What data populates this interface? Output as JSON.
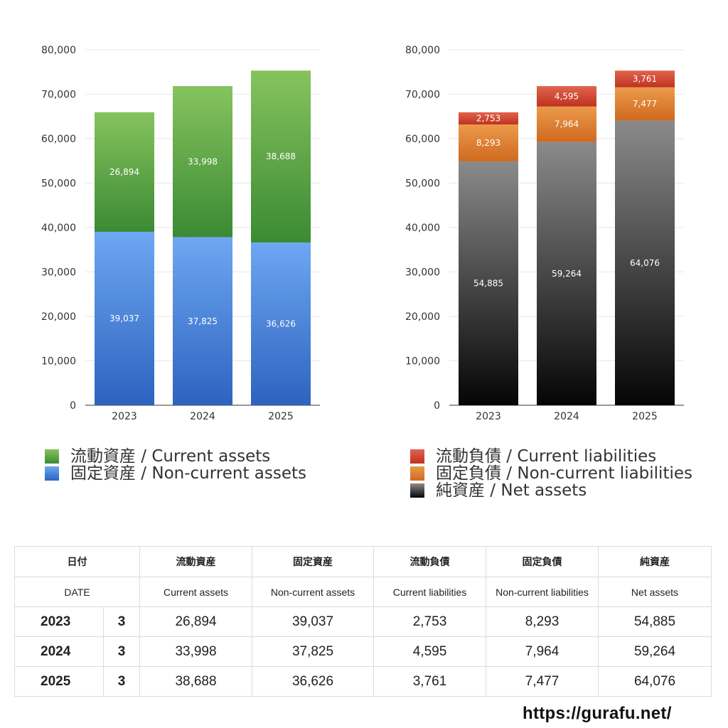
{
  "chart_data": [
    {
      "type": "bar",
      "stacked": true,
      "categories": [
        "2023",
        "2024",
        "2025"
      ],
      "yticks": [
        "0",
        "10,000",
        "20,000",
        "30,000",
        "40,000",
        "50,000",
        "60,000",
        "70,000",
        "80,000"
      ],
      "ylim": [
        0,
        80000
      ],
      "grid": true,
      "legend_position": "bottom",
      "series": [
        {
          "name": "固定資産 / Non-current assets",
          "values": [
            39037,
            37825,
            36626
          ],
          "labels": [
            "39,037",
            "37,825",
            "36,626"
          ],
          "color": "#3f7fd4",
          "gradient": [
            "#6ea7f2",
            "#2d63bf"
          ]
        },
        {
          "name": "流動資産 / Current assets",
          "values": [
            26894,
            33998,
            38688
          ],
          "labels": [
            "26,894",
            "33,998",
            "38,688"
          ],
          "color": "#4a9a3e",
          "gradient": [
            "#86c35e",
            "#3b8a33"
          ]
        }
      ],
      "legend": [
        {
          "label": "流動資産 / Current assets",
          "color": "#4a9a3e"
        },
        {
          "label": "固定資産 / Non-current assets",
          "color": "#3f7fd4"
        }
      ]
    },
    {
      "type": "bar",
      "stacked": true,
      "categories": [
        "2023",
        "2024",
        "2025"
      ],
      "yticks": [
        "0",
        "10,000",
        "20,000",
        "30,000",
        "40,000",
        "50,000",
        "60,000",
        "70,000",
        "80,000"
      ],
      "ylim": [
        0,
        80000
      ],
      "grid": true,
      "legend_position": "bottom",
      "series": [
        {
          "name": "純資産 / Net assets",
          "values": [
            54885,
            59264,
            64076
          ],
          "labels": [
            "54,885",
            "59,264",
            "64,076"
          ],
          "color": "#333333",
          "gradient": [
            "#8a8a8a",
            "#050505"
          ]
        },
        {
          "name": "固定負債 / Non-current liabilities",
          "values": [
            8293,
            7964,
            7477
          ],
          "labels": [
            "8,293",
            "7,964",
            "7,477"
          ],
          "color": "#e07b2c",
          "gradient": [
            "#eb9a4a",
            "#d0691f"
          ]
        },
        {
          "name": "流動負債 / Current liabilities",
          "values": [
            2753,
            4595,
            3761
          ],
          "labels": [
            "2,753",
            "4,595",
            "3,761"
          ],
          "color": "#cc3f2e",
          "gradient": [
            "#e0644f",
            "#c0321f"
          ]
        }
      ],
      "legend": [
        {
          "label": "流動負債 / Current liabilities",
          "color": "#cc3f2e"
        },
        {
          "label": "固定負債 / Non-current liabilities",
          "color": "#e07b2c"
        },
        {
          "label": "純資産 / Net assets",
          "color": "#333333"
        }
      ]
    }
  ],
  "table": {
    "header_jp": [
      "日付",
      "流動資産",
      "固定資産",
      "流動負債",
      "固定負債",
      "純資産"
    ],
    "header_en": [
      "DATE",
      "Current assets",
      "Non-current assets",
      "Current liabilities",
      "Non-current liabilities",
      "Net assets"
    ],
    "rows": [
      {
        "year": "2023",
        "month": "3",
        "values": [
          "26,894",
          "39,037",
          "2,753",
          "8,293",
          "54,885"
        ]
      },
      {
        "year": "2024",
        "month": "3",
        "values": [
          "33,998",
          "37,825",
          "4,595",
          "7,964",
          "59,264"
        ]
      },
      {
        "year": "2025",
        "month": "3",
        "values": [
          "38,688",
          "36,626",
          "3,761",
          "7,477",
          "64,076"
        ]
      }
    ]
  },
  "source": "https://gurafu.net/"
}
